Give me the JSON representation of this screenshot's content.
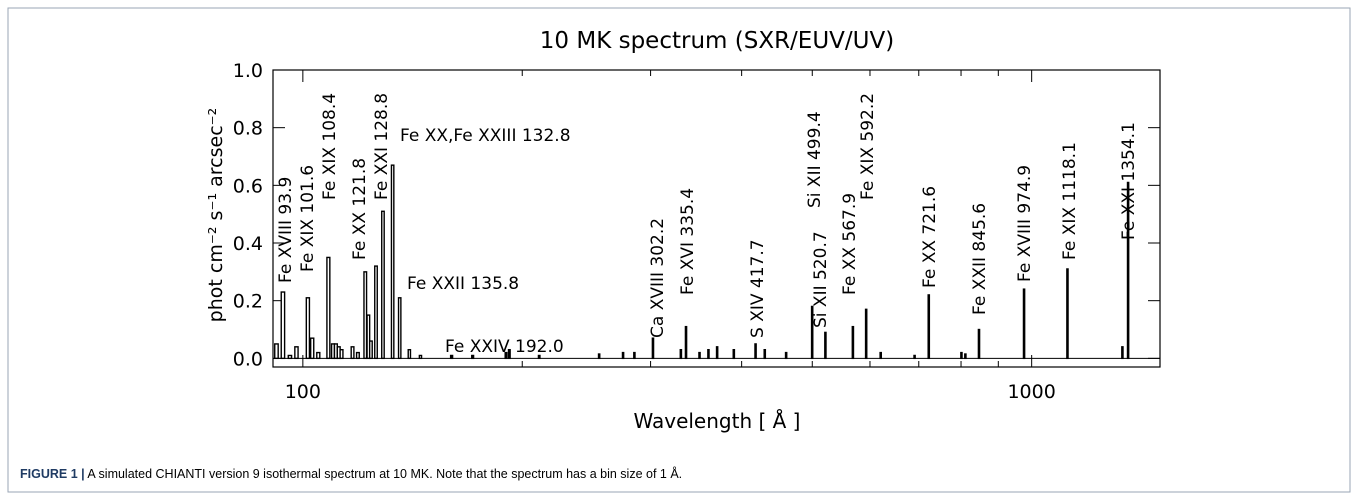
{
  "chart_data": {
    "type": "bar",
    "title": "10 MK spectrum (SXR/EUV/UV)",
    "x_label": "Wavelength [ Å ]",
    "y_label": "phot cm⁻² s⁻¹ arcsec⁻²",
    "x_log": true,
    "xlim": [
      91,
      1500
    ],
    "xticks": [
      100,
      1000
    ],
    "xminor": [
      200,
      300,
      400,
      500,
      600,
      700,
      800,
      900
    ],
    "ylim": [
      -0.03,
      1.0
    ],
    "yticks": [
      {
        "value": 0,
        "label": "0.0"
      },
      0.2,
      0.4,
      0.6,
      0.8,
      {
        "value": 1,
        "label": "1.0"
      }
    ],
    "color": "#000000",
    "x": [
      92,
      93.9,
      96,
      98,
      101.6,
      103,
      105,
      108.4,
      110,
      111,
      112,
      113,
      117,
      119,
      121.8,
      123,
      124,
      126,
      128.8,
      132.8,
      135.8,
      140,
      145,
      160,
      171,
      190,
      192.0,
      211,
      255,
      275,
      285,
      302.2,
      330,
      335.4,
      350,
      360,
      370,
      390,
      417.7,
      430,
      460,
      499.4,
      520.7,
      567.9,
      592.2,
      620,
      690,
      721.6,
      800,
      810,
      845.6,
      974.9,
      1118.1,
      1330,
      1354.1
    ],
    "values": [
      0.05,
      0.23,
      0.01,
      0.04,
      0.21,
      0.07,
      0.02,
      0.35,
      0.05,
      0.05,
      0.04,
      0.03,
      0.04,
      0.02,
      0.3,
      0.15,
      0.06,
      0.32,
      0.51,
      0.67,
      0.21,
      0.03,
      0.01,
      0.01,
      0.01,
      0.02,
      0.03,
      0.01,
      0.015,
      0.02,
      0.02,
      0.07,
      0.03,
      0.11,
      0.02,
      0.03,
      0.04,
      0.03,
      0.05,
      0.03,
      0.02,
      0.18,
      0.09,
      0.11,
      0.17,
      0.02,
      0.01,
      0.22,
      0.02,
      0.015,
      0.1,
      0.24,
      0.31,
      0.04,
      0.61
    ],
    "annotations": [
      "Fe XVIII 93.9",
      "Fe XIX 101.6",
      "Fe XIX 108.4",
      "Fe XX 121.8",
      "Fe XXI 128.8",
      "Fe XX,Fe XXIII 132.8",
      "Fe XXII 135.8",
      "Fe XXIV 192.0",
      "Ca XVIII 302.2",
      "Fe XVI 335.4",
      "S XIV 417.7",
      "Si XII 499.4",
      "Si XII 520.7",
      "Fe XX 567.9",
      "Fe XIX 592.2",
      "Fe XX 721.6",
      "Fe XXII 845.6",
      "Fe XVIII 974.9",
      "Fe XIX 1118.1",
      "Fe XXI 1354.1"
    ]
  },
  "caption": {
    "label": "FIGURE 1 |",
    "text": "A simulated CHIANTI version 9 isothermal spectrum at 10 MK. Note that the spectrum has a bin size of 1 Å."
  }
}
